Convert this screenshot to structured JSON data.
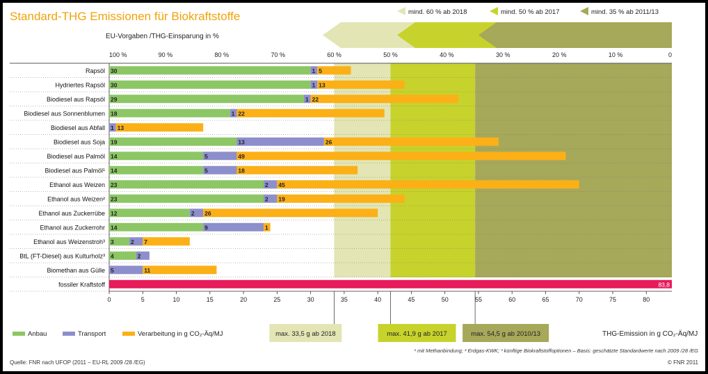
{
  "chart_data": {
    "type": "bar",
    "title": "Standard-THG Emissionen für Biokraftstoffe",
    "subtitle": "EU-Vorgaben /THG-Einsparung in %",
    "orientation": "horizontal",
    "stacked": true,
    "categories": [
      "Rapsöl",
      "Hydriertes Rapsöl",
      "Biodiesel aus Rapsöl",
      "Biodiesel aus Sonnenblumen",
      "Biodiesel aus Abfall",
      "Biodiesel aus Soja",
      "Biodiesel aus Palmöl",
      "Biodiesel aus Palmöl¹",
      "Ethanol aus Weizen",
      "Ethanol aus Weizen²",
      "Ethanol aus Zuckerrübe",
      "Ethanol aus Zuckerrohr",
      "Ethanol aus Weizenstroh³",
      "BtL (FT-Diesel) aus Kulturholz³",
      "Biomethan aus Gülle",
      "fossiler Kraftstoff"
    ],
    "series": [
      {
        "name": "Anbau",
        "color": "#8cc665",
        "values": [
          30,
          30,
          29,
          18,
          0,
          19,
          14,
          14,
          23,
          23,
          12,
          14,
          3,
          4,
          0,
          0
        ]
      },
      {
        "name": "Transport",
        "color": "#8d8fcc",
        "values": [
          1,
          1,
          1,
          1,
          1,
          13,
          5,
          5,
          2,
          2,
          2,
          9,
          2,
          2,
          5,
          0
        ]
      },
      {
        "name": "Verarbeitung in g CO₂-Äq/MJ",
        "color": "#fbb017",
        "values": [
          5,
          13,
          22,
          22,
          13,
          26,
          49,
          18,
          45,
          19,
          26,
          1,
          7,
          0,
          11,
          0
        ]
      },
      {
        "name": "fossiler Kraftstoff",
        "color": "#e61c5b",
        "values": [
          0,
          0,
          0,
          0,
          0,
          0,
          0,
          0,
          0,
          0,
          0,
          0,
          0,
          0,
          0,
          83.8
        ]
      }
    ],
    "fossil_label": "83,8",
    "xlim": [
      0,
      83.8
    ],
    "xticks": [
      "0",
      "5",
      "10",
      "15",
      "20",
      "25",
      "30",
      "35",
      "40",
      "45",
      "50",
      "55",
      "60",
      "65",
      "70",
      "75",
      "80"
    ],
    "xlabel": "THG-Emission in g CO₂-Äq/MJ",
    "top_axis_ticks": [
      "100 %",
      "90 %",
      "80 %",
      "70 %",
      "60 %",
      "50 %",
      "40 %",
      "30 %",
      "20 %",
      "10 %",
      "0"
    ],
    "thresholds": [
      {
        "label": "mind. 60 % ab 2018",
        "max_label": "max. 33,5 g ab 2018",
        "value": 33.5,
        "color": "#e3e6b4"
      },
      {
        "label": "mind. 50 % ab 2017",
        "max_label": "max. 41,9 g ab 2017",
        "value": 41.9,
        "color": "#c7d32c"
      },
      {
        "label": "mind. 35 % ab 2011/13",
        "max_label": "max. 54,5 g ab 2010/13",
        "value": 54.5,
        "color": "#a6a85a"
      }
    ],
    "legend_placement": "bottom-left",
    "grid": false
  },
  "footnote": "¹ mit Methanbindung; ² Erdgas-KWK; ³ künftige Biokraftstoffoptionen – Basis: geschätzte Standardwerte nach 2009 /28 /EG",
  "source": "Quelle: FNR nach UFOP (2011 – EU-RL 2009 /28 /EG)",
  "copyright": "© FNR 2011"
}
